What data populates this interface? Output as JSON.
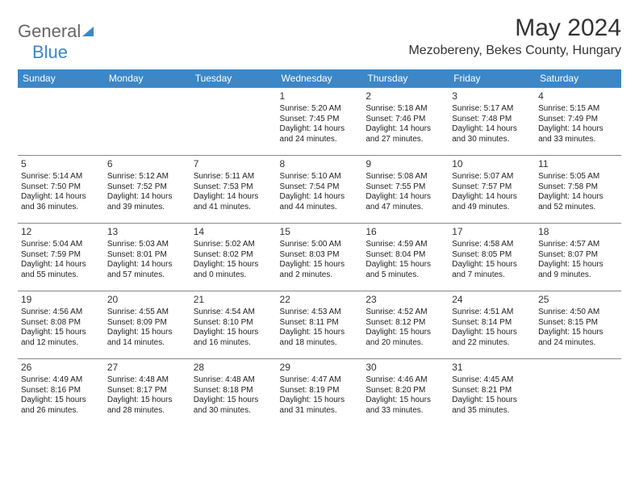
{
  "logo": {
    "part1": "General",
    "part2": "Blue"
  },
  "title": "May 2024",
  "location": "Mezobereny, Bekes County, Hungary",
  "header_bg": "#3c87c7",
  "header_fg": "#ffffff",
  "border_color": "#888888",
  "text_color": "#222222",
  "weekdays": [
    "Sunday",
    "Monday",
    "Tuesday",
    "Wednesday",
    "Thursday",
    "Friday",
    "Saturday"
  ],
  "weeks": [
    [
      null,
      null,
      null,
      {
        "n": "1",
        "sr": "5:20 AM",
        "ss": "7:45 PM",
        "dl": "14 hours and 24 minutes."
      },
      {
        "n": "2",
        "sr": "5:18 AM",
        "ss": "7:46 PM",
        "dl": "14 hours and 27 minutes."
      },
      {
        "n": "3",
        "sr": "5:17 AM",
        "ss": "7:48 PM",
        "dl": "14 hours and 30 minutes."
      },
      {
        "n": "4",
        "sr": "5:15 AM",
        "ss": "7:49 PM",
        "dl": "14 hours and 33 minutes."
      }
    ],
    [
      {
        "n": "5",
        "sr": "5:14 AM",
        "ss": "7:50 PM",
        "dl": "14 hours and 36 minutes."
      },
      {
        "n": "6",
        "sr": "5:12 AM",
        "ss": "7:52 PM",
        "dl": "14 hours and 39 minutes."
      },
      {
        "n": "7",
        "sr": "5:11 AM",
        "ss": "7:53 PM",
        "dl": "14 hours and 41 minutes."
      },
      {
        "n": "8",
        "sr": "5:10 AM",
        "ss": "7:54 PM",
        "dl": "14 hours and 44 minutes."
      },
      {
        "n": "9",
        "sr": "5:08 AM",
        "ss": "7:55 PM",
        "dl": "14 hours and 47 minutes."
      },
      {
        "n": "10",
        "sr": "5:07 AM",
        "ss": "7:57 PM",
        "dl": "14 hours and 49 minutes."
      },
      {
        "n": "11",
        "sr": "5:05 AM",
        "ss": "7:58 PM",
        "dl": "14 hours and 52 minutes."
      }
    ],
    [
      {
        "n": "12",
        "sr": "5:04 AM",
        "ss": "7:59 PM",
        "dl": "14 hours and 55 minutes."
      },
      {
        "n": "13",
        "sr": "5:03 AM",
        "ss": "8:01 PM",
        "dl": "14 hours and 57 minutes."
      },
      {
        "n": "14",
        "sr": "5:02 AM",
        "ss": "8:02 PM",
        "dl": "15 hours and 0 minutes."
      },
      {
        "n": "15",
        "sr": "5:00 AM",
        "ss": "8:03 PM",
        "dl": "15 hours and 2 minutes."
      },
      {
        "n": "16",
        "sr": "4:59 AM",
        "ss": "8:04 PM",
        "dl": "15 hours and 5 minutes."
      },
      {
        "n": "17",
        "sr": "4:58 AM",
        "ss": "8:05 PM",
        "dl": "15 hours and 7 minutes."
      },
      {
        "n": "18",
        "sr": "4:57 AM",
        "ss": "8:07 PM",
        "dl": "15 hours and 9 minutes."
      }
    ],
    [
      {
        "n": "19",
        "sr": "4:56 AM",
        "ss": "8:08 PM",
        "dl": "15 hours and 12 minutes."
      },
      {
        "n": "20",
        "sr": "4:55 AM",
        "ss": "8:09 PM",
        "dl": "15 hours and 14 minutes."
      },
      {
        "n": "21",
        "sr": "4:54 AM",
        "ss": "8:10 PM",
        "dl": "15 hours and 16 minutes."
      },
      {
        "n": "22",
        "sr": "4:53 AM",
        "ss": "8:11 PM",
        "dl": "15 hours and 18 minutes."
      },
      {
        "n": "23",
        "sr": "4:52 AM",
        "ss": "8:12 PM",
        "dl": "15 hours and 20 minutes."
      },
      {
        "n": "24",
        "sr": "4:51 AM",
        "ss": "8:14 PM",
        "dl": "15 hours and 22 minutes."
      },
      {
        "n": "25",
        "sr": "4:50 AM",
        "ss": "8:15 PM",
        "dl": "15 hours and 24 minutes."
      }
    ],
    [
      {
        "n": "26",
        "sr": "4:49 AM",
        "ss": "8:16 PM",
        "dl": "15 hours and 26 minutes."
      },
      {
        "n": "27",
        "sr": "4:48 AM",
        "ss": "8:17 PM",
        "dl": "15 hours and 28 minutes."
      },
      {
        "n": "28",
        "sr": "4:48 AM",
        "ss": "8:18 PM",
        "dl": "15 hours and 30 minutes."
      },
      {
        "n": "29",
        "sr": "4:47 AM",
        "ss": "8:19 PM",
        "dl": "15 hours and 31 minutes."
      },
      {
        "n": "30",
        "sr": "4:46 AM",
        "ss": "8:20 PM",
        "dl": "15 hours and 33 minutes."
      },
      {
        "n": "31",
        "sr": "4:45 AM",
        "ss": "8:21 PM",
        "dl": "15 hours and 35 minutes."
      },
      null
    ]
  ],
  "labels": {
    "sunrise": "Sunrise:",
    "sunset": "Sunset:",
    "daylight": "Daylight:"
  }
}
